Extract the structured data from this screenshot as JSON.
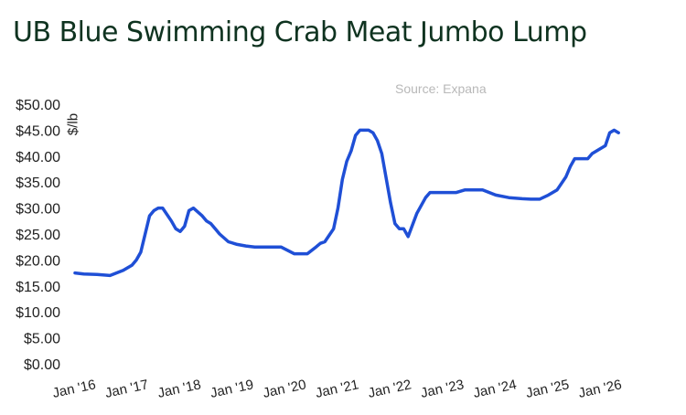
{
  "title": "UB Blue Swimming Crab Meat Jumbo Lump",
  "source": "Source: Expana",
  "colors": {
    "series": "#1f4fd6",
    "title": "#0f3320",
    "source": "#b8b8b8"
  },
  "chart_data": {
    "type": "line",
    "title": "UB Blue Swimming Crab Meat Jumbo Lump",
    "ylabel": "$/lb",
    "xlabel": "",
    "ylim": [
      0,
      50
    ],
    "y_ticks": [
      0,
      5,
      10,
      15,
      20,
      25,
      30,
      35,
      40,
      45,
      50
    ],
    "y_tick_labels": [
      "$0.00",
      "$5.00",
      "$10.00",
      "$15.00",
      "$20.00",
      "$25.00",
      "$30.00",
      "$35.00",
      "$40.00",
      "$45.00",
      "$50.00"
    ],
    "x_ticks": [
      "2016-01",
      "2017-01",
      "2018-01",
      "2019-01",
      "2020-01",
      "2021-01",
      "2022-01",
      "2023-01",
      "2024-01",
      "2025-01",
      "2026-01"
    ],
    "x_tick_labels": [
      "Jan '16",
      "Jan '17",
      "Jan '18",
      "Jan '19",
      "Jan '20",
      "Jan '21",
      "Jan '22",
      "Jan '23",
      "Jan '24",
      "Jan '25",
      "Jan '26"
    ],
    "grid": false,
    "legend": "none",
    "series": [
      {
        "x": [
          "2016-01",
          "2016-03",
          "2016-06",
          "2016-09",
          "2016-12",
          "2017-02",
          "2017-03",
          "2017-04",
          "2017-06",
          "2017-07",
          "2017-08",
          "2017-09",
          "2017-11",
          "2017-12",
          "2018-01",
          "2018-02",
          "2018-03",
          "2018-04",
          "2018-06",
          "2018-07",
          "2018-08",
          "2018-09",
          "2018-10",
          "2018-12",
          "2019-02",
          "2019-04",
          "2019-06",
          "2019-08",
          "2019-10",
          "2019-12",
          "2020-03",
          "2020-06",
          "2020-08",
          "2020-09",
          "2020-10",
          "2020-12",
          "2021-01",
          "2021-02",
          "2021-03",
          "2021-04",
          "2021-05",
          "2021-06",
          "2021-07",
          "2021-08",
          "2021-09",
          "2021-10",
          "2021-11",
          "2022-01",
          "2022-02",
          "2022-03",
          "2022-04",
          "2022-05",
          "2022-07",
          "2022-09",
          "2022-10",
          "2022-11",
          "2023-01",
          "2023-02",
          "2023-03",
          "2023-04",
          "2023-06",
          "2023-08",
          "2023-10",
          "2024-01",
          "2024-04",
          "2024-07",
          "2024-09",
          "2024-11",
          "2025-01",
          "2025-03",
          "2025-05",
          "2025-06",
          "2025-07",
          "2025-08",
          "2025-09",
          "2025-10",
          "2025-11",
          "2025-12",
          "2026-02",
          "2026-03",
          "2026-04",
          "2026-05"
        ],
        "y": [
          17.5,
          17.3,
          17.2,
          17.0,
          18.0,
          19.0,
          20.0,
          21.5,
          28.5,
          29.5,
          30.0,
          30.0,
          27.5,
          26.0,
          25.5,
          26.5,
          29.5,
          30.0,
          28.5,
          27.5,
          27.0,
          26.0,
          25.0,
          23.5,
          23.0,
          22.7,
          22.5,
          22.5,
          22.5,
          22.5,
          21.2,
          21.2,
          22.5,
          23.2,
          23.5,
          26.0,
          30.0,
          35.5,
          39.0,
          41.0,
          44.0,
          45.0,
          45.0,
          45.0,
          44.5,
          43.0,
          40.5,
          31.0,
          27.0,
          26.0,
          26.0,
          24.5,
          29.0,
          32.0,
          33.0,
          33.0,
          33.0,
          33.0,
          33.0,
          33.0,
          33.5,
          33.5,
          33.5,
          32.5,
          32.0,
          31.8,
          31.7,
          31.7,
          32.5,
          33.5,
          36.0,
          38.0,
          39.5,
          39.5,
          39.5,
          39.5,
          40.5,
          41.0,
          42.0,
          44.5,
          45.0,
          44.5
        ]
      }
    ]
  }
}
